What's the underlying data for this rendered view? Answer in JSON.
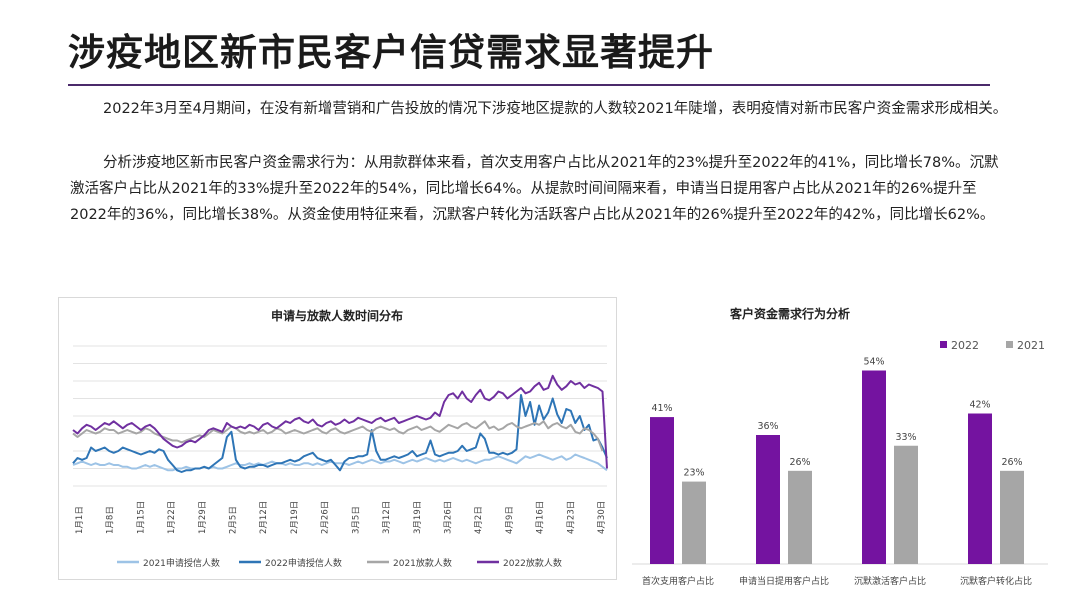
{
  "title": "涉疫地区新市民客户信贷需求显著提升",
  "paragraphs": [
    "2022年3月至4月期间，在没有新增营销和广告投放的情况下涉疫地区提款的人数较2021年陡增，表明疫情对新市民客户资金需求形成相关。",
    "分析涉疫地区新市民客户资金需求行为：从用款群体来看，首次支用客户占比从2021年的23%提升至2022年的41%，同比增长78%。沉默激活客户占比从2021年的33%提升至2022年的54%，同比增长64%。从提款时间间隔来看，申请当日提用客户占比从2021年的26%提升至2022年的36%，同比增长38%。从资金使用特征来看，沉默客户转化为活跃客户占比从2021年的26%提升至2022年的42%，同比增长62%。"
  ],
  "chart_data": [
    {
      "type": "line",
      "title": "申请与放款人数时间分布",
      "xlabel": "",
      "ylabel": "",
      "grid": true,
      "legend_position": "bottom",
      "x_ticks": [
        "1月1日",
        "1月8日",
        "1月15日",
        "1月22日",
        "1月29日",
        "2月5日",
        "2月12日",
        "2月19日",
        "2月26日",
        "3月5日",
        "3月12日",
        "3月19日",
        "3月26日",
        "4月2日",
        "4月9日",
        "4月16日",
        "4月23日",
        "4月30日"
      ],
      "ylim": [
        0,
        8
      ],
      "series": [
        {
          "name": "2021申请授信人数",
          "color": "#9dc3e6",
          "values": [
            1.2,
            1.3,
            1.4,
            1.3,
            1.2,
            1.3,
            1.2,
            1.2,
            1.3,
            1.2,
            1.2,
            1.1,
            1.1,
            1.0,
            1.0,
            1.1,
            1.2,
            1.1,
            1.2,
            1.1,
            1.0,
            0.9,
            0.9,
            1.0,
            1.0,
            1.1,
            1.0,
            1.0,
            1.0,
            1.1,
            1.0,
            1.1,
            1.0,
            1.0,
            1.1,
            1.2,
            1.3,
            1.2,
            1.2,
            1.3,
            1.2,
            1.3,
            1.2,
            1.3,
            1.4,
            1.3,
            1.3,
            1.2,
            1.3,
            1.2,
            1.2,
            1.3,
            1.3,
            1.2,
            1.3,
            1.2,
            1.3,
            1.4,
            1.3,
            1.3,
            1.3,
            1.2,
            1.3,
            1.4,
            1.3,
            1.4,
            1.5,
            1.4,
            1.3,
            1.4,
            1.4,
            1.5,
            1.4,
            1.3,
            1.4,
            1.5,
            1.4,
            1.5,
            1.6,
            1.5,
            1.4,
            1.5,
            1.4,
            1.5,
            1.6,
            1.5,
            1.4,
            1.5,
            1.4,
            1.3,
            1.4,
            1.5,
            1.5,
            1.6,
            1.7,
            1.6,
            1.5,
            1.4,
            1.3,
            1.5,
            1.7,
            1.6,
            1.7,
            1.8,
            1.7,
            1.6,
            1.5,
            1.6,
            1.7,
            1.5,
            1.6,
            1.8,
            1.7,
            1.6,
            1.5,
            1.4,
            1.3,
            1.1,
            0.9
          ]
        },
        {
          "name": "2022申请授信人数",
          "color": "#2e75b6",
          "values": [
            1.3,
            1.6,
            1.5,
            1.6,
            2.2,
            2.0,
            2.1,
            2.2,
            2.0,
            1.9,
            2.0,
            2.2,
            2.1,
            2.0,
            1.9,
            1.8,
            1.9,
            2.0,
            1.9,
            2.1,
            2.0,
            1.5,
            1.2,
            0.9,
            0.8,
            0.9,
            0.9,
            1.0,
            1.0,
            1.1,
            1.0,
            1.2,
            1.4,
            1.6,
            2.8,
            3.1,
            1.5,
            1.1,
            1.0,
            1.1,
            1.1,
            1.2,
            1.2,
            1.1,
            1.2,
            1.3,
            1.3,
            1.4,
            1.5,
            1.4,
            1.5,
            1.7,
            1.8,
            1.9,
            1.6,
            1.5,
            1.4,
            1.5,
            1.2,
            0.9,
            1.4,
            1.6,
            1.6,
            1.7,
            1.7,
            1.8,
            3.2,
            2.0,
            1.5,
            1.5,
            1.6,
            1.7,
            1.6,
            1.7,
            1.8,
            2.0,
            1.7,
            1.8,
            1.9,
            2.6,
            1.8,
            1.7,
            1.8,
            1.9,
            1.9,
            2.0,
            2.3,
            2.0,
            2.1,
            2.2,
            3.0,
            2.7,
            1.9,
            1.9,
            1.8,
            1.9,
            1.8,
            1.9,
            2.1,
            5.2,
            4.0,
            4.8,
            3.5,
            4.6,
            3.8,
            4.2,
            5.0,
            4.1,
            3.6,
            4.4,
            4.3,
            3.6,
            4.0,
            3.2,
            3.5,
            2.6,
            2.7,
            2.2,
            1.6
          ]
        },
        {
          "name": "2021放款人数",
          "color": "#a6a6a6",
          "values": [
            3.0,
            2.8,
            3.0,
            3.2,
            3.1,
            3.0,
            3.1,
            3.3,
            3.2,
            3.2,
            3.0,
            3.1,
            3.2,
            3.1,
            3.0,
            3.1,
            3.3,
            3.2,
            3.0,
            2.9,
            2.8,
            2.7,
            2.6,
            2.6,
            2.5,
            2.6,
            2.7,
            2.8,
            2.9,
            2.8,
            3.0,
            3.2,
            3.1,
            3.0,
            3.2,
            3.4,
            3.3,
            3.1,
            3.0,
            3.1,
            3.0,
            3.1,
            3.2,
            3.0,
            3.1,
            3.3,
            3.2,
            3.0,
            3.1,
            3.2,
            3.1,
            3.0,
            3.1,
            3.2,
            3.3,
            3.1,
            3.0,
            3.2,
            3.3,
            3.1,
            3.0,
            3.1,
            3.2,
            3.3,
            3.4,
            3.2,
            3.1,
            3.3,
            3.4,
            3.3,
            3.2,
            3.3,
            3.1,
            3.0,
            3.2,
            3.3,
            3.4,
            3.2,
            3.3,
            3.4,
            3.2,
            3.1,
            3.3,
            3.5,
            3.4,
            3.3,
            3.5,
            3.6,
            3.4,
            3.3,
            3.5,
            3.7,
            3.3,
            3.4,
            3.2,
            3.3,
            3.5,
            3.6,
            3.4,
            3.3,
            3.4,
            3.5,
            3.6,
            3.5,
            3.7,
            3.3,
            3.5,
            3.6,
            3.4,
            3.3,
            3.5,
            3.1,
            3.0,
            3.3,
            3.2,
            3.0,
            2.7,
            2.0
          ]
        },
        {
          "name": "2022放款人数",
          "color": "#7030a0",
          "values": [
            3.2,
            3.0,
            3.3,
            3.5,
            3.4,
            3.2,
            3.4,
            3.6,
            3.5,
            3.7,
            3.5,
            3.3,
            3.5,
            3.6,
            3.4,
            3.2,
            3.4,
            3.5,
            3.3,
            3.0,
            2.7,
            2.5,
            2.3,
            2.2,
            2.3,
            2.5,
            2.6,
            2.5,
            2.7,
            2.9,
            3.2,
            3.3,
            3.2,
            3.1,
            3.6,
            3.4,
            3.3,
            3.4,
            3.3,
            3.5,
            3.4,
            3.2,
            3.5,
            3.6,
            3.4,
            3.3,
            3.5,
            3.7,
            3.6,
            3.8,
            3.9,
            3.7,
            3.6,
            3.8,
            3.5,
            3.4,
            3.6,
            3.7,
            3.5,
            3.6,
            3.8,
            3.6,
            3.7,
            3.9,
            3.8,
            3.7,
            3.6,
            3.8,
            3.9,
            3.7,
            3.8,
            3.9,
            3.6,
            3.7,
            3.8,
            3.9,
            4.0,
            3.9,
            3.8,
            3.9,
            4.2,
            4.0,
            4.8,
            5.2,
            5.3,
            5.0,
            5.4,
            5.0,
            4.8,
            5.2,
            5.5,
            5.0,
            4.9,
            5.1,
            5.4,
            5.3,
            5.0,
            5.2,
            5.4,
            5.6,
            5.3,
            5.4,
            5.7,
            5.9,
            5.5,
            5.6,
            6.3,
            5.8,
            5.5,
            5.7,
            6.0,
            5.8,
            5.9,
            5.6,
            5.8,
            5.7,
            5.6,
            5.4,
            1.0
          ]
        }
      ]
    },
    {
      "type": "bar",
      "title": "客户资金需求行为分析",
      "xlabel": "",
      "ylabel": "",
      "grid": false,
      "legend_position": "top-right",
      "categories": [
        "首次支用客户占比",
        "申请当日提用客户占比",
        "沉默激活客户占比",
        "沉默客户转化占比"
      ],
      "ylim": [
        0,
        60
      ],
      "series": [
        {
          "name": "2022",
          "color": "#7413a0",
          "values": [
            41,
            36,
            54,
            42
          ],
          "labels": [
            "41%",
            "36%",
            "54%",
            "42%"
          ]
        },
        {
          "name": "2021",
          "color": "#a6a6a6",
          "values": [
            23,
            26,
            33,
            26
          ],
          "labels": [
            "23%",
            "26%",
            "33%",
            "26%"
          ]
        }
      ]
    }
  ]
}
